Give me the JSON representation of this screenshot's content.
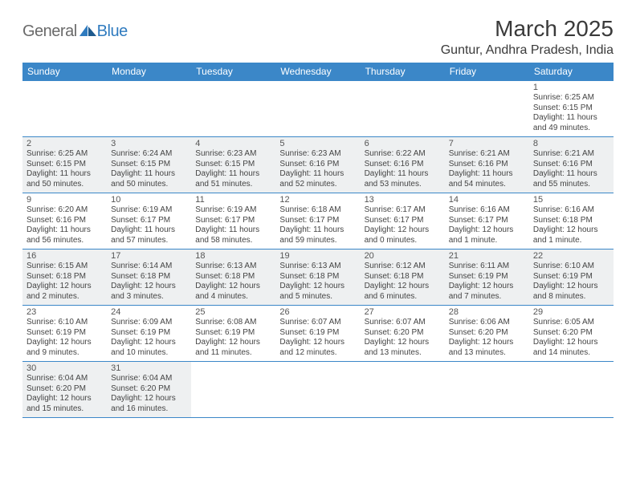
{
  "logo": {
    "text1": "General",
    "text2": "Blue"
  },
  "title": "March 2025",
  "location": "Guntur, Andhra Pradesh, India",
  "header_bg": "#3b87c8",
  "header_fg": "#ffffff",
  "fill_bg": "#eef0f1",
  "weekdays": [
    "Sunday",
    "Monday",
    "Tuesday",
    "Wednesday",
    "Thursday",
    "Friday",
    "Saturday"
  ],
  "weeks": [
    [
      {
        "n": "",
        "filled": false
      },
      {
        "n": "",
        "filled": false
      },
      {
        "n": "",
        "filled": false
      },
      {
        "n": "",
        "filled": false
      },
      {
        "n": "",
        "filled": false
      },
      {
        "n": "",
        "filled": false
      },
      {
        "n": "1",
        "filled": false,
        "sr": "Sunrise: 6:25 AM",
        "ss": "Sunset: 6:15 PM",
        "dl": "Daylight: 11 hours and 49 minutes."
      }
    ],
    [
      {
        "n": "2",
        "filled": true,
        "sr": "Sunrise: 6:25 AM",
        "ss": "Sunset: 6:15 PM",
        "dl": "Daylight: 11 hours and 50 minutes."
      },
      {
        "n": "3",
        "filled": true,
        "sr": "Sunrise: 6:24 AM",
        "ss": "Sunset: 6:15 PM",
        "dl": "Daylight: 11 hours and 50 minutes."
      },
      {
        "n": "4",
        "filled": true,
        "sr": "Sunrise: 6:23 AM",
        "ss": "Sunset: 6:15 PM",
        "dl": "Daylight: 11 hours and 51 minutes."
      },
      {
        "n": "5",
        "filled": true,
        "sr": "Sunrise: 6:23 AM",
        "ss": "Sunset: 6:16 PM",
        "dl": "Daylight: 11 hours and 52 minutes."
      },
      {
        "n": "6",
        "filled": true,
        "sr": "Sunrise: 6:22 AM",
        "ss": "Sunset: 6:16 PM",
        "dl": "Daylight: 11 hours and 53 minutes."
      },
      {
        "n": "7",
        "filled": true,
        "sr": "Sunrise: 6:21 AM",
        "ss": "Sunset: 6:16 PM",
        "dl": "Daylight: 11 hours and 54 minutes."
      },
      {
        "n": "8",
        "filled": true,
        "sr": "Sunrise: 6:21 AM",
        "ss": "Sunset: 6:16 PM",
        "dl": "Daylight: 11 hours and 55 minutes."
      }
    ],
    [
      {
        "n": "9",
        "filled": false,
        "sr": "Sunrise: 6:20 AM",
        "ss": "Sunset: 6:16 PM",
        "dl": "Daylight: 11 hours and 56 minutes."
      },
      {
        "n": "10",
        "filled": false,
        "sr": "Sunrise: 6:19 AM",
        "ss": "Sunset: 6:17 PM",
        "dl": "Daylight: 11 hours and 57 minutes."
      },
      {
        "n": "11",
        "filled": false,
        "sr": "Sunrise: 6:19 AM",
        "ss": "Sunset: 6:17 PM",
        "dl": "Daylight: 11 hours and 58 minutes."
      },
      {
        "n": "12",
        "filled": false,
        "sr": "Sunrise: 6:18 AM",
        "ss": "Sunset: 6:17 PM",
        "dl": "Daylight: 11 hours and 59 minutes."
      },
      {
        "n": "13",
        "filled": false,
        "sr": "Sunrise: 6:17 AM",
        "ss": "Sunset: 6:17 PM",
        "dl": "Daylight: 12 hours and 0 minutes."
      },
      {
        "n": "14",
        "filled": false,
        "sr": "Sunrise: 6:16 AM",
        "ss": "Sunset: 6:17 PM",
        "dl": "Daylight: 12 hours and 1 minute."
      },
      {
        "n": "15",
        "filled": false,
        "sr": "Sunrise: 6:16 AM",
        "ss": "Sunset: 6:18 PM",
        "dl": "Daylight: 12 hours and 1 minute."
      }
    ],
    [
      {
        "n": "16",
        "filled": true,
        "sr": "Sunrise: 6:15 AM",
        "ss": "Sunset: 6:18 PM",
        "dl": "Daylight: 12 hours and 2 minutes."
      },
      {
        "n": "17",
        "filled": true,
        "sr": "Sunrise: 6:14 AM",
        "ss": "Sunset: 6:18 PM",
        "dl": "Daylight: 12 hours and 3 minutes."
      },
      {
        "n": "18",
        "filled": true,
        "sr": "Sunrise: 6:13 AM",
        "ss": "Sunset: 6:18 PM",
        "dl": "Daylight: 12 hours and 4 minutes."
      },
      {
        "n": "19",
        "filled": true,
        "sr": "Sunrise: 6:13 AM",
        "ss": "Sunset: 6:18 PM",
        "dl": "Daylight: 12 hours and 5 minutes."
      },
      {
        "n": "20",
        "filled": true,
        "sr": "Sunrise: 6:12 AM",
        "ss": "Sunset: 6:18 PM",
        "dl": "Daylight: 12 hours and 6 minutes."
      },
      {
        "n": "21",
        "filled": true,
        "sr": "Sunrise: 6:11 AM",
        "ss": "Sunset: 6:19 PM",
        "dl": "Daylight: 12 hours and 7 minutes."
      },
      {
        "n": "22",
        "filled": true,
        "sr": "Sunrise: 6:10 AM",
        "ss": "Sunset: 6:19 PM",
        "dl": "Daylight: 12 hours and 8 minutes."
      }
    ],
    [
      {
        "n": "23",
        "filled": false,
        "sr": "Sunrise: 6:10 AM",
        "ss": "Sunset: 6:19 PM",
        "dl": "Daylight: 12 hours and 9 minutes."
      },
      {
        "n": "24",
        "filled": false,
        "sr": "Sunrise: 6:09 AM",
        "ss": "Sunset: 6:19 PM",
        "dl": "Daylight: 12 hours and 10 minutes."
      },
      {
        "n": "25",
        "filled": false,
        "sr": "Sunrise: 6:08 AM",
        "ss": "Sunset: 6:19 PM",
        "dl": "Daylight: 12 hours and 11 minutes."
      },
      {
        "n": "26",
        "filled": false,
        "sr": "Sunrise: 6:07 AM",
        "ss": "Sunset: 6:19 PM",
        "dl": "Daylight: 12 hours and 12 minutes."
      },
      {
        "n": "27",
        "filled": false,
        "sr": "Sunrise: 6:07 AM",
        "ss": "Sunset: 6:20 PM",
        "dl": "Daylight: 12 hours and 13 minutes."
      },
      {
        "n": "28",
        "filled": false,
        "sr": "Sunrise: 6:06 AM",
        "ss": "Sunset: 6:20 PM",
        "dl": "Daylight: 12 hours and 13 minutes."
      },
      {
        "n": "29",
        "filled": false,
        "sr": "Sunrise: 6:05 AM",
        "ss": "Sunset: 6:20 PM",
        "dl": "Daylight: 12 hours and 14 minutes."
      }
    ],
    [
      {
        "n": "30",
        "filled": true,
        "sr": "Sunrise: 6:04 AM",
        "ss": "Sunset: 6:20 PM",
        "dl": "Daylight: 12 hours and 15 minutes."
      },
      {
        "n": "31",
        "filled": true,
        "sr": "Sunrise: 6:04 AM",
        "ss": "Sunset: 6:20 PM",
        "dl": "Daylight: 12 hours and 16 minutes."
      },
      {
        "n": "",
        "filled": false
      },
      {
        "n": "",
        "filled": false
      },
      {
        "n": "",
        "filled": false
      },
      {
        "n": "",
        "filled": false
      },
      {
        "n": "",
        "filled": false
      }
    ]
  ]
}
